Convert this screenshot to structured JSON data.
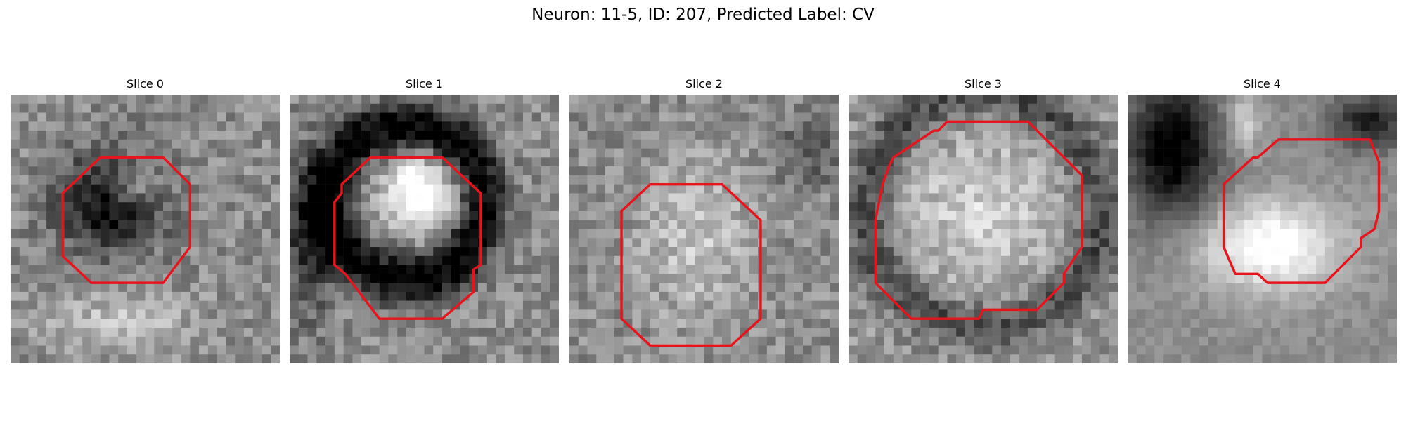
{
  "figure": {
    "title": "Neuron: 11-5, ID: 207, Predicted Label: CV"
  },
  "panels": [
    {
      "title": "Slice 0",
      "image": "grayscale-microscopy-patch",
      "overlay": "red-roi-outline"
    },
    {
      "title": "Slice 1",
      "image": "grayscale-microscopy-patch",
      "overlay": "red-roi-outline"
    },
    {
      "title": "Slice 2",
      "image": "grayscale-microscopy-patch",
      "overlay": "red-roi-outline"
    },
    {
      "title": "Slice 3",
      "image": "grayscale-microscopy-patch",
      "overlay": "red-roi-outline"
    },
    {
      "title": "Slice 4",
      "image": "grayscale-microscopy-patch",
      "overlay": "red-roi-outline"
    }
  ],
  "colors": {
    "roi_outline": "#e8141c",
    "background": "#ffffff"
  }
}
